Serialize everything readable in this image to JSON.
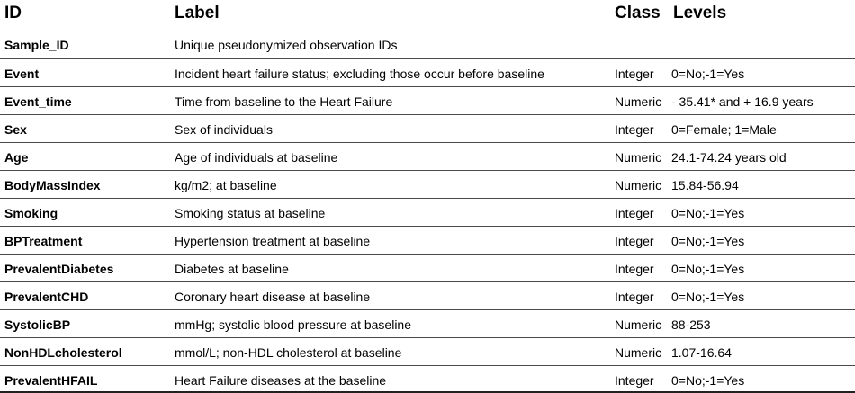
{
  "table": {
    "headers": {
      "id": "ID",
      "label": "Label",
      "class": "Class",
      "levels": "Levels"
    },
    "rows": [
      {
        "id": "Sample_ID",
        "label": "Unique pseudonymized observation IDs",
        "class": "",
        "levels": ""
      },
      {
        "id": "Event",
        "label": "Incident heart failure status; excluding those occur before baseline",
        "class": "Integer",
        "levels": "0=No;-1=Yes"
      },
      {
        "id": "Event_time",
        "label": "Time from baseline to the Heart Failure",
        "class": "Numeric",
        "levels": "- 35.41* and + 16.9 years"
      },
      {
        "id": "Sex",
        "label": "Sex of individuals",
        "class": "Integer",
        "levels": "0=Female; 1=Male"
      },
      {
        "id": "Age",
        "label": "Age of individuals at baseline",
        "class": "Numeric",
        "levels": "24.1-74.24 years old"
      },
      {
        "id": "BodyMassIndex",
        "label": "kg/m2; at baseline",
        "class": "Numeric",
        "levels": "15.84-56.94"
      },
      {
        "id": "Smoking",
        "label": "Smoking status at baseline",
        "class": "Integer",
        "levels": "0=No;-1=Yes"
      },
      {
        "id": "BPTreatment",
        "label": "Hypertension treatment at baseline",
        "class": "Integer",
        "levels": "0=No;-1=Yes"
      },
      {
        "id": "PrevalentDiabetes",
        "label": "Diabetes at baseline",
        "class": "Integer",
        "levels": "0=No;-1=Yes"
      },
      {
        "id": "PrevalentCHD",
        "label": "Coronary heart disease at baseline",
        "class": "Integer",
        "levels": "0=No;-1=Yes"
      },
      {
        "id": "SystolicBP",
        "label": "mmHg; systolic blood pressure at baseline",
        "class": "Numeric",
        "levels": "88-253"
      },
      {
        "id": "NonHDLcholesterol",
        "label": "mmol/L; non-HDL cholesterol at baseline",
        "class": "Numeric",
        "levels": "1.07-16.64"
      },
      {
        "id": "PrevalentHFAIL",
        "label": "Heart Failure diseases at the baseline",
        "class": "Integer",
        "levels": "0=No;-1=Yes"
      }
    ]
  }
}
